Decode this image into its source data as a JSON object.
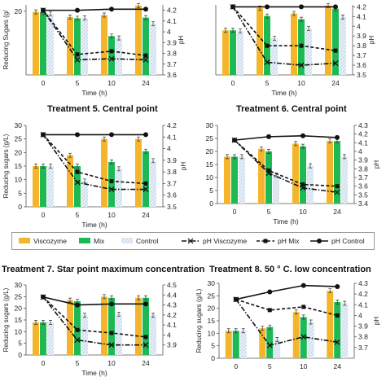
{
  "legend": {
    "viscozyme": "Viscozyme",
    "mix": "Mix",
    "control": "Control",
    "ph_viscozyme": "pH Viscozyme",
    "ph_mix": "pH Mix",
    "ph_control": "pH Control"
  },
  "colors": {
    "viscozyme": "#f5b52a",
    "mix": "#1db954",
    "control": "#b8cde3",
    "line": "#111111"
  },
  "chart_data": [
    {
      "type": "bar",
      "title": "",
      "categories": [
        "0",
        "5",
        "10",
        "24"
      ],
      "xlabel": "Time (h)",
      "ylabel": "Reducing Sugars (g/",
      "y2label": "pH",
      "ylim": [
        0,
        22
      ],
      "yticks": [
        "20"
      ],
      "y2lim": [
        3.6,
        4.25
      ],
      "y2ticks": [
        "3.6",
        "3.7",
        "3.8",
        "3.9",
        "4",
        "4.1",
        "4.2"
      ],
      "series": [
        {
          "name": "Viscozyme",
          "values": [
            19.8,
            18.2,
            18.8,
            21.8
          ]
        },
        {
          "name": "Mix",
          "values": [
            19.6,
            17.8,
            12.2,
            18.0
          ]
        },
        {
          "name": "Control",
          "values": [
            19.2,
            17.9,
            11.6,
            16.1
          ]
        }
      ],
      "ph_series": [
        {
          "name": "pH Viscozyme",
          "values": [
            4.2,
            3.74,
            3.75,
            3.74
          ]
        },
        {
          "name": "pH Mix",
          "values": [
            4.2,
            3.79,
            3.82,
            3.78
          ]
        },
        {
          "name": "pH Control",
          "values": [
            4.2,
            4.2,
            4.21,
            4.21
          ]
        }
      ]
    },
    {
      "type": "bar",
      "title": "",
      "categories": [
        "0",
        "5",
        "10",
        "24"
      ],
      "xlabel": "Time (h)",
      "ylabel": "",
      "y2label": "pH",
      "ylim": [
        0,
        22
      ],
      "yticks": [],
      "y2lim": [
        3.5,
        4.22
      ],
      "y2ticks": [
        "3.5",
        "3.6",
        "3.7",
        "3.8",
        "3.9",
        "4",
        "4.1",
        "4.2"
      ],
      "series": [
        {
          "name": "Viscozyme",
          "values": [
            14.0,
            21.0,
            19.3,
            21.8
          ]
        },
        {
          "name": "Mix",
          "values": [
            14.0,
            18.5,
            17.5,
            20.8
          ]
        },
        {
          "name": "Control",
          "values": [
            13.8,
            11.5,
            14.6,
            18.2
          ]
        }
      ],
      "ph_series": [
        {
          "name": "pH Viscozyme",
          "values": [
            4.2,
            3.63,
            3.6,
            3.62
          ]
        },
        {
          "name": "pH Mix",
          "values": [
            4.2,
            3.8,
            3.8,
            3.75
          ]
        },
        {
          "name": "pH Control",
          "values": [
            4.2,
            4.2,
            4.2,
            4.2
          ]
        }
      ]
    },
    {
      "type": "bar",
      "title": "Treatment 5. Central point",
      "categories": [
        "0",
        "5",
        "10",
        "24"
      ],
      "xlabel": "Time (h)",
      "ylabel": "Reducing sugars (g/L)",
      "y2label": "pH",
      "ylim": [
        0,
        30
      ],
      "yticks": [
        "0",
        "5",
        "10",
        "15",
        "20",
        "25",
        "30"
      ],
      "y2lim": [
        3.5,
        4.2
      ],
      "y2ticks": [
        "3.5",
        "3.6",
        "3.7",
        "3.8",
        "3.9",
        "4",
        "4.1",
        "4.2"
      ],
      "series": [
        {
          "name": "Viscozyme",
          "values": [
            15.0,
            19.0,
            25.0,
            25.0
          ]
        },
        {
          "name": "Mix",
          "values": [
            15.0,
            15.0,
            16.5,
            20.5
          ]
        },
        {
          "name": "Control",
          "values": [
            15.0,
            9.5,
            14.0,
            17.0
          ]
        }
      ],
      "ph_series": [
        {
          "name": "pH Viscozyme",
          "values": [
            4.12,
            3.71,
            3.65,
            3.65
          ]
        },
        {
          "name": "pH Mix",
          "values": [
            4.12,
            3.8,
            3.72,
            3.7
          ]
        },
        {
          "name": "pH Control",
          "values": [
            4.12,
            4.12,
            4.12,
            4.12
          ]
        }
      ]
    },
    {
      "type": "bar",
      "title": "Treatment 6. Central point",
      "categories": [
        "0",
        "5",
        "10",
        "24"
      ],
      "xlabel": "Time (h)",
      "ylabel": "",
      "y2label": "pH",
      "ylim": [
        0,
        30
      ],
      "yticks": [
        "0",
        "5",
        "10",
        "15",
        "20",
        "25",
        "30"
      ],
      "y2lim": [
        3.4,
        4.3
      ],
      "y2ticks": [
        "3.4",
        "3.5",
        "3.6",
        "3.7",
        "3.8",
        "3.9",
        "4",
        "4.1",
        "4.2",
        "4.3"
      ],
      "series": [
        {
          "name": "Viscozyme",
          "values": [
            18.0,
            21.0,
            23.0,
            24.0
          ]
        },
        {
          "name": "Mix",
          "values": [
            18.0,
            20.0,
            22.0,
            24.0
          ]
        },
        {
          "name": "Control",
          "values": [
            18.0,
            11.0,
            14.5,
            18.0
          ]
        }
      ],
      "ph_series": [
        {
          "name": "pH Viscozyme",
          "values": [
            4.13,
            3.75,
            3.58,
            3.53
          ]
        },
        {
          "name": "pH Mix",
          "values": [
            4.13,
            3.78,
            3.62,
            3.6
          ]
        },
        {
          "name": "pH Control",
          "values": [
            4.13,
            4.17,
            4.18,
            4.16
          ]
        }
      ]
    },
    {
      "type": "bar",
      "title": "Treatment 7. Star point maximum concentration",
      "categories": [
        "0",
        "5",
        "10",
        "24"
      ],
      "xlabel": "Time (h)",
      "ylabel": "Reducing sugars (g/L)",
      "y2label": "",
      "ylim": [
        0,
        30
      ],
      "yticks": [
        "0",
        "5",
        "10",
        "15",
        "20",
        "25",
        "30"
      ],
      "y2lim": [
        3.8,
        4.5
      ],
      "y2ticks": [
        "3.9",
        "4",
        "4.1",
        "4.2",
        "4.3",
        "4.4",
        "4.5"
      ],
      "series": [
        {
          "name": "Viscozyme",
          "values": [
            14.0,
            23.5,
            25.0,
            24.5
          ]
        },
        {
          "name": "Mix",
          "values": [
            14.0,
            23.0,
            24.5,
            24.5
          ]
        },
        {
          "name": "Control",
          "values": [
            14.0,
            17.0,
            17.5,
            17.0
          ]
        }
      ],
      "ph_series": [
        {
          "name": "pH Viscozyme",
          "values": [
            4.38,
            3.95,
            3.9,
            3.9
          ]
        },
        {
          "name": "pH Mix",
          "values": [
            4.38,
            4.05,
            4.02,
            3.98
          ]
        },
        {
          "name": "pH Control",
          "values": [
            4.38,
            4.3,
            4.31,
            4.31
          ]
        }
      ]
    },
    {
      "type": "bar",
      "title": "Treatment 8. 50 ° C. low concentration",
      "categories": [
        "0",
        "5",
        "10",
        "24"
      ],
      "xlabel": "",
      "ylabel": "Reducing sugars (g/L)",
      "y2label": "pH",
      "ylim": [
        0,
        30
      ],
      "yticks": [
        "0",
        "5",
        "10",
        "15",
        "20",
        "25",
        "30"
      ],
      "y2lim": [
        3.6,
        4.3
      ],
      "y2ticks": [
        "3.7",
        "3.8",
        "3.9",
        "4",
        "4.1",
        "4.2",
        "4.3"
      ],
      "series": [
        {
          "name": "Viscozyme",
          "values": [
            11.0,
            12.0,
            18.5,
            27.0
          ]
        },
        {
          "name": "Mix",
          "values": [
            11.0,
            12.5,
            16.5,
            22.5
          ]
        },
        {
          "name": "Control",
          "values": [
            11.0,
            7.5,
            14.5,
            22.0
          ]
        }
      ],
      "ph_series": [
        {
          "name": "pH Viscozyme",
          "values": [
            4.15,
            3.72,
            3.8,
            3.75
          ]
        },
        {
          "name": "pH Mix",
          "values": [
            4.15,
            4.05,
            4.08,
            4.0
          ]
        },
        {
          "name": "pH Control",
          "values": [
            4.15,
            4.22,
            4.28,
            4.27
          ]
        }
      ]
    }
  ]
}
